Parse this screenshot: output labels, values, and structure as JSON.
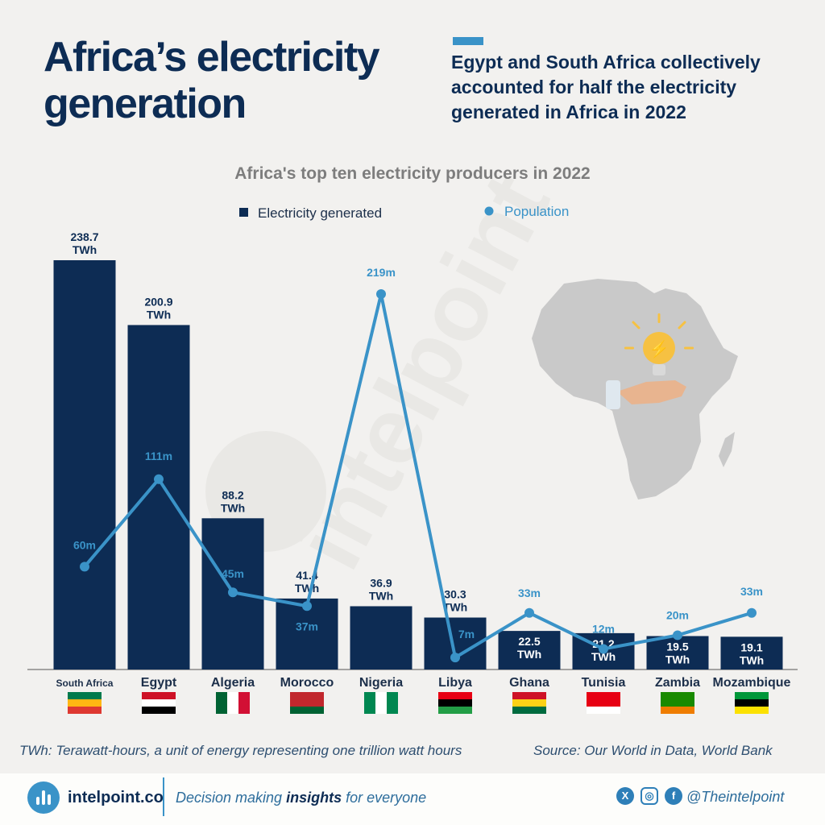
{
  "headline": "Africa’s electricity generation",
  "subheadline": "Egypt and South Africa collectively accounted for half the electricity generated in Africa in 2022",
  "chart_data": {
    "type": "bar",
    "title": "Africa's top ten electricity producers in 2022",
    "categories": [
      "South Africa",
      "Egypt",
      "Algeria",
      "Morocco",
      "Nigeria",
      "Libya",
      "Ghana",
      "Tunisia",
      "Zambia",
      "Mozambique"
    ],
    "legend": {
      "electricity": "Electricity generated",
      "population": "Population",
      "placement": "top-center"
    },
    "series": [
      {
        "name": "Electricity generated",
        "type": "bar",
        "values": [
          238.7,
          200.9,
          88.2,
          41.4,
          36.9,
          30.3,
          22.5,
          21.2,
          19.5,
          19.1
        ],
        "labels": [
          "238.7",
          "200.9",
          "88.2",
          "41.4",
          "36.9",
          "30.3",
          "22.5",
          "21.2",
          "19.5",
          "19.1"
        ],
        "unit": "TWh",
        "color": "#0d2c54"
      },
      {
        "name": "Population",
        "type": "line",
        "values": [
          60,
          111,
          45,
          37,
          219,
          7,
          33,
          12,
          20,
          33
        ],
        "labels": [
          "60m",
          "111m",
          "45m",
          "37m",
          "219m",
          "7m",
          "33m",
          "12m",
          "20m",
          "33m"
        ],
        "color": "#3a93c8"
      }
    ],
    "grid": false
  },
  "footnote_left": "TWh: Terawatt-hours, a unit of energy representing one trillion watt hours",
  "footnote_right": "Source: Our World in Data, World Bank",
  "footer": {
    "brand": "intelpoint.co",
    "tagline_before": "Decision making",
    "tagline_bold": "insights",
    "tagline_after": "for everyone",
    "handle": "@Theintelpoint",
    "icons": [
      "x-icon",
      "instagram-icon",
      "facebook-icon"
    ]
  },
  "watermark": "intelpoint",
  "colors": {
    "navy": "#0d2c54",
    "accent": "#3a93c8",
    "background": "#f2f1ef"
  }
}
